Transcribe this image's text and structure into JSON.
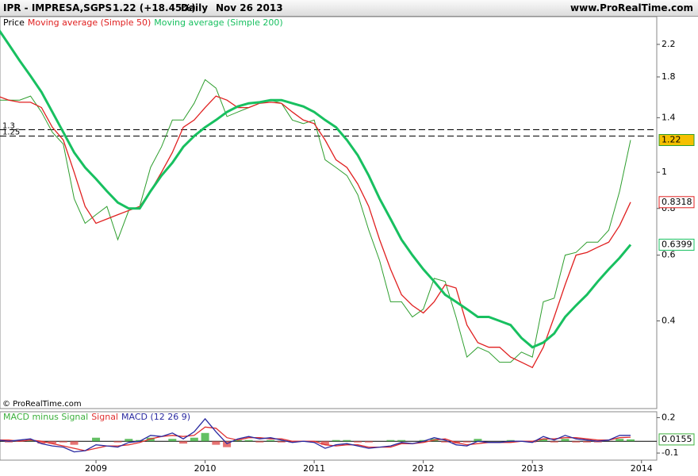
{
  "header": {
    "symbol": "IPR - IMPRESA,SGPS",
    "quote": "1.22 (+18.45%)",
    "period": "Daily",
    "date": "Nov 26 2013",
    "site": "www.ProRealTime.com"
  },
  "chart_data": [
    {
      "type": "line",
      "log_scale": true,
      "annotation": "© ProRealTime.com",
      "x": [
        2008.1,
        2008.2,
        2008.3,
        2008.4,
        2008.5,
        2008.6,
        2008.7,
        2008.8,
        2008.9,
        2009.0,
        2009.1,
        2009.2,
        2009.3,
        2009.4,
        2009.5,
        2009.6,
        2009.7,
        2009.8,
        2009.9,
        2010.0,
        2010.1,
        2010.2,
        2010.3,
        2010.4,
        2010.5,
        2010.6,
        2010.7,
        2010.8,
        2010.9,
        2011.0,
        2011.1,
        2011.2,
        2011.3,
        2011.4,
        2011.5,
        2011.6,
        2011.7,
        2011.8,
        2011.9,
        2012.0,
        2012.1,
        2012.2,
        2012.3,
        2012.4,
        2012.5,
        2012.6,
        2012.7,
        2012.8,
        2012.9,
        2013.0,
        2013.1,
        2013.2,
        2013.3,
        2013.4,
        2013.5,
        2013.6,
        2013.7,
        2013.8,
        2013.9
      ],
      "xlim": [
        2008.12,
        2014.14
      ],
      "xticks": [
        2009,
        2010,
        2011,
        2012,
        2013,
        2014
      ],
      "ylim": [
        0.233,
        2.61
      ],
      "yticks": [
        0.4,
        0.6,
        0.8,
        1,
        1.4,
        1.8,
        2.2
      ],
      "hlines": [
        1.3,
        1.25
      ],
      "series": [
        {
          "name": "Price",
          "color": "#2e9e2e",
          "label_color": "#f5c000",
          "values": [
            1.56,
            1.56,
            1.56,
            1.6,
            1.45,
            1.28,
            1.19,
            0.85,
            0.73,
            0.77,
            0.81,
            0.66,
            0.79,
            0.81,
            1.03,
            1.17,
            1.38,
            1.38,
            1.53,
            1.77,
            1.68,
            1.41,
            1.45,
            1.49,
            1.53,
            1.56,
            1.53,
            1.38,
            1.35,
            1.38,
            1.08,
            1.03,
            0.98,
            0.87,
            0.7,
            0.58,
            0.45,
            0.45,
            0.41,
            0.43,
            0.52,
            0.51,
            0.41,
            0.32,
            0.34,
            0.33,
            0.31,
            0.31,
            0.33,
            0.32,
            0.45,
            0.46,
            0.6,
            0.61,
            0.65,
            0.65,
            0.7,
            0.89,
            1.22
          ]
        },
        {
          "name": "Moving average (Simple 50)",
          "color": "#e02020",
          "label_color": "#ffffff",
          "values": [
            1.6,
            1.56,
            1.54,
            1.54,
            1.49,
            1.32,
            1.22,
            1.0,
            0.81,
            0.73,
            0.75,
            0.77,
            0.79,
            0.81,
            0.89,
            1.0,
            1.13,
            1.32,
            1.38,
            1.49,
            1.6,
            1.56,
            1.49,
            1.49,
            1.53,
            1.54,
            1.53,
            1.45,
            1.38,
            1.35,
            1.22,
            1.08,
            1.03,
            0.93,
            0.81,
            0.66,
            0.55,
            0.47,
            0.44,
            0.42,
            0.45,
            0.5,
            0.49,
            0.39,
            0.35,
            0.34,
            0.34,
            0.32,
            0.31,
            0.3,
            0.34,
            0.41,
            0.5,
            0.6,
            0.61,
            0.63,
            0.65,
            0.72,
            0.8318
          ]
        },
        {
          "name": "Moving average (Simple 200)",
          "color": "#18c060",
          "label_color": "#ffffff",
          "values": [
            2.43,
            2.2,
            1.99,
            1.81,
            1.64,
            1.45,
            1.28,
            1.13,
            1.03,
            0.96,
            0.89,
            0.83,
            0.8,
            0.8,
            0.89,
            0.98,
            1.06,
            1.17,
            1.25,
            1.32,
            1.38,
            1.45,
            1.5,
            1.53,
            1.54,
            1.56,
            1.56,
            1.53,
            1.5,
            1.45,
            1.38,
            1.32,
            1.22,
            1.11,
            0.98,
            0.85,
            0.75,
            0.66,
            0.6,
            0.55,
            0.51,
            0.47,
            0.45,
            0.43,
            0.41,
            0.41,
            0.4,
            0.39,
            0.36,
            0.34,
            0.35,
            0.37,
            0.41,
            0.44,
            0.47,
            0.51,
            0.55,
            0.59,
            0.6399
          ]
        }
      ]
    },
    {
      "type": "macd",
      "x": [
        2008.1,
        2008.2,
        2008.3,
        2008.4,
        2008.5,
        2008.6,
        2008.7,
        2008.8,
        2008.9,
        2009.0,
        2009.1,
        2009.2,
        2009.3,
        2009.4,
        2009.5,
        2009.6,
        2009.7,
        2009.8,
        2009.9,
        2010.0,
        2010.1,
        2010.2,
        2010.3,
        2010.4,
        2010.5,
        2010.6,
        2010.7,
        2010.8,
        2010.9,
        2011.0,
        2011.1,
        2011.2,
        2011.3,
        2011.4,
        2011.5,
        2011.6,
        2011.7,
        2011.8,
        2011.9,
        2012.0,
        2012.1,
        2012.2,
        2012.3,
        2012.4,
        2012.5,
        2012.6,
        2012.7,
        2012.8,
        2012.9,
        2013.0,
        2013.1,
        2013.2,
        2013.3,
        2013.4,
        2013.5,
        2013.6,
        2013.7,
        2013.8,
        2013.9
      ],
      "xlim": [
        2008.12,
        2014.14
      ],
      "xticks": [
        2009,
        2010,
        2011,
        2012,
        2013,
        2014
      ],
      "ylim": [
        -0.16,
        0.25
      ],
      "yticks": [
        -0.1,
        0.2
      ],
      "series": [
        {
          "name": "MACD minus Signal",
          "kind": "bar",
          "color": "#3cb03c",
          "negative_color": "#e05050",
          "values": [
            0,
            -0.01,
            0.01,
            0.01,
            -0.02,
            -0.02,
            -0.01,
            -0.03,
            0.0,
            0.03,
            0.0,
            -0.01,
            0.02,
            0.01,
            0.03,
            0.0,
            0.02,
            -0.02,
            0.03,
            0.07,
            -0.03,
            -0.05,
            0.01,
            0.01,
            -0.01,
            0.01,
            -0.01,
            -0.01,
            0.0,
            -0.01,
            -0.03,
            0.01,
            0.01,
            -0.01,
            -0.01,
            0.0,
            0.01,
            0.01,
            0.0,
            0.01,
            0.02,
            -0.01,
            -0.02,
            -0.01,
            0.02,
            0.0,
            0.0,
            0.01,
            0.0,
            -0.01,
            0.02,
            -0.01,
            0.02,
            -0.01,
            -0.01,
            -0.01,
            0.0,
            0.02,
            0.0155
          ]
        },
        {
          "name": "Signal",
          "kind": "line",
          "color": "#e03030",
          "values": [
            0.01,
            0.01,
            0.0,
            0.01,
            0.0,
            -0.02,
            -0.04,
            -0.06,
            -0.08,
            -0.06,
            -0.04,
            -0.04,
            -0.03,
            -0.01,
            0.02,
            0.04,
            0.05,
            0.04,
            0.05,
            0.12,
            0.11,
            0.03,
            0.01,
            0.03,
            0.03,
            0.02,
            0.02,
            0.0,
            0.0,
            0.0,
            -0.03,
            -0.04,
            -0.03,
            -0.03,
            -0.05,
            -0.05,
            -0.05,
            -0.02,
            -0.02,
            -0.01,
            0.01,
            0.02,
            -0.01,
            -0.03,
            -0.02,
            -0.01,
            -0.01,
            -0.01,
            0.0,
            0.0,
            0.02,
            0.02,
            0.03,
            0.03,
            0.02,
            0.01,
            0.01,
            0.03,
            0.0345
          ]
        },
        {
          "name": "MACD (12 26 9)",
          "kind": "line",
          "color": "#2a2aa0",
          "values": [
            0.01,
            0.0,
            0.01,
            0.02,
            -0.02,
            -0.04,
            -0.05,
            -0.09,
            -0.08,
            -0.03,
            -0.04,
            -0.05,
            -0.01,
            0.0,
            0.05,
            0.04,
            0.07,
            0.02,
            0.08,
            0.19,
            0.08,
            -0.02,
            0.02,
            0.04,
            0.02,
            0.03,
            0.01,
            -0.01,
            0.0,
            -0.01,
            -0.06,
            -0.03,
            -0.02,
            -0.04,
            -0.06,
            -0.05,
            -0.04,
            -0.01,
            -0.02,
            0.0,
            0.03,
            0.01,
            -0.03,
            -0.04,
            0.0,
            -0.01,
            -0.01,
            0.0,
            0.0,
            -0.01,
            0.04,
            0.01,
            0.05,
            0.02,
            0.01,
            0.0,
            0.01,
            0.05,
            0.05
          ]
        }
      ]
    }
  ]
}
